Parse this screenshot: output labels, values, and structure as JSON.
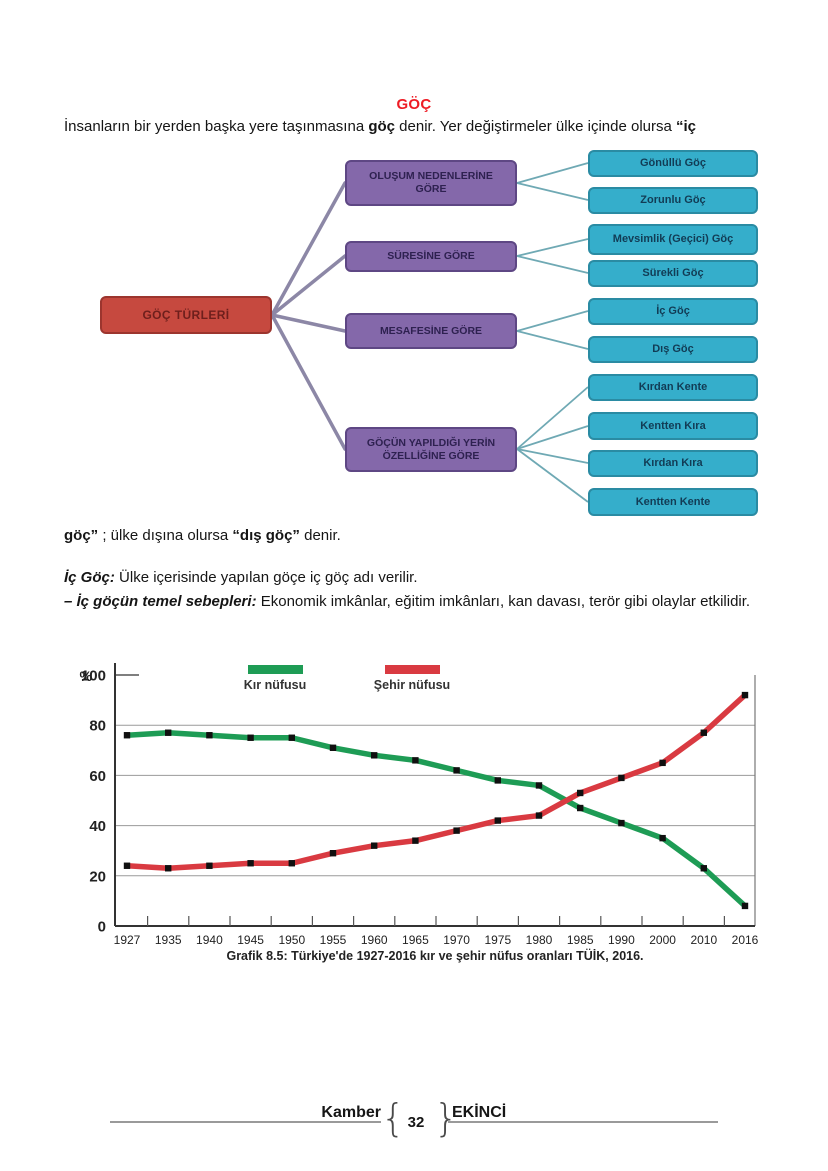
{
  "page": {
    "title": "GÖÇ",
    "intro": {
      "t1": "İnsanların bir yerden başka yere taşınmasına ",
      "b1": "göç",
      "t2": " denir. Yer değiştirmeler ülke içinde olursa ",
      "b2": "“iç"
    },
    "after_diagram": {
      "b1": "göç”",
      "t1": " ; ülke dışına olursa ",
      "b2": "“dış göç”",
      "t2": " denir."
    },
    "ic_goc": {
      "b1": "İç Göç:",
      "t1": " Ülke içerisinde yapılan göçe iç göç adı verilir."
    },
    "sebepler": {
      "b1": "– İç göçün temel sebepleri:",
      "t1": " Ekonomik imkânlar, eğitim imkânları, kan davası, terör gibi olaylar etkilidir."
    },
    "footer": {
      "left_name": "Kamber",
      "page_number": "32",
      "right_name": "EKİNCİ",
      "brace_open": "{",
      "brace_close": "}"
    }
  },
  "diagram": {
    "root": "GÖÇ TÜRLERİ",
    "branches": [
      {
        "label": "OLUŞUM NEDENLERİNE GÖRE",
        "children": [
          "Gönüllü Göç",
          "Zorunlu Göç"
        ]
      },
      {
        "label": "SÜRESİNE GÖRE",
        "children": [
          "Mevsimlik (Geçici) Göç",
          "Sürekli Göç"
        ]
      },
      {
        "label": "MESAFESİNE GÖRE",
        "children": [
          "İç Göç",
          "Dış Göç"
        ]
      },
      {
        "label": "GÖÇÜN YAPILDIĞI YERİN ÖZELLİĞİNE GÖRE",
        "children": [
          "Kırdan Kente",
          "Kentten Kıra",
          "Kırdan Kıra",
          "Kentten Kente"
        ]
      }
    ],
    "colors": {
      "root_bg": "#c6493f",
      "branch_bg": "#8468aa",
      "leaf_bg": "#35aecb",
      "root_connector": "#8c87a6",
      "leaf_connector": "#6fa9b4",
      "title_red": "#ee1c25"
    }
  },
  "chart_data": {
    "type": "line",
    "title": "",
    "caption": "Grafik 8.5: Türkiye'de 1927-2016 kır ve şehir nüfus oranları TÜİK, 2016.",
    "xlabel": "",
    "ylabel": "%",
    "ylim": [
      0,
      100
    ],
    "yticks": [
      0,
      20,
      40,
      60,
      80,
      100
    ],
    "grid": true,
    "legend_position": "top",
    "categories": [
      "1927",
      "1935",
      "1940",
      "1945",
      "1950",
      "1955",
      "1960",
      "1965",
      "1970",
      "1975",
      "1980",
      "1985",
      "1990",
      "2000",
      "2010",
      "2016"
    ],
    "series": [
      {
        "name": "Kır nüfusu",
        "color": "#1e9c55",
        "values": [
          76,
          77,
          76,
          75,
          75,
          71,
          68,
          66,
          62,
          58,
          56,
          47,
          41,
          35,
          23,
          8
        ]
      },
      {
        "name": "Şehir nüfusu",
        "color": "#d93a41",
        "values": [
          24,
          23,
          24,
          25,
          25,
          29,
          32,
          34,
          38,
          42,
          44,
          53,
          59,
          65,
          77,
          92
        ]
      }
    ],
    "marker": "black-square"
  }
}
